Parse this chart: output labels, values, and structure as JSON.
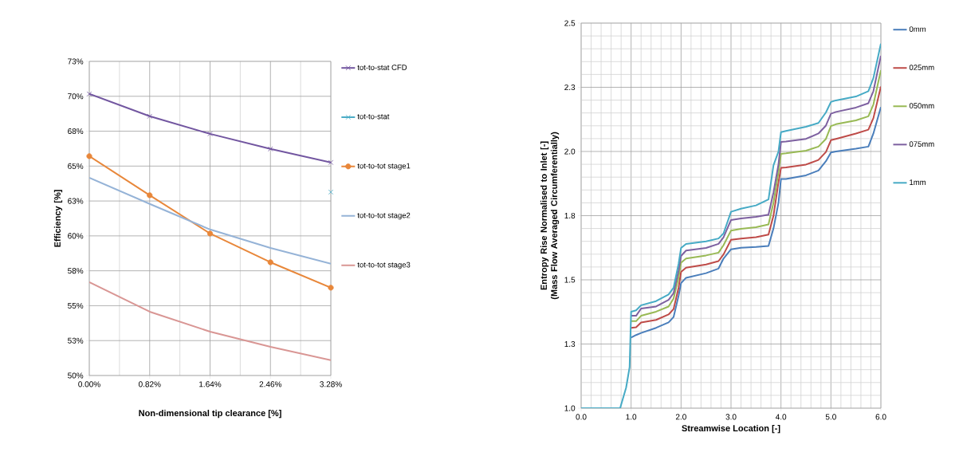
{
  "chart_data": [
    {
      "type": "line",
      "xlabel": "Non-dimensional tip clearance [%]",
      "ylabel": "Efficiency [%]",
      "x": [
        0,
        0.82,
        1.64,
        2.46,
        3.28
      ],
      "xlim": [
        0,
        3.28
      ],
      "xticks": [
        {
          "value": 0,
          "label": "0.00%"
        },
        {
          "value": 0.82,
          "label": "0.82%"
        },
        {
          "value": 1.64,
          "label": "1.64%"
        },
        {
          "value": 2.46,
          "label": "2.46%"
        },
        {
          "value": 3.28,
          "label": "3.28%"
        }
      ],
      "ylim": [
        50,
        72.5
      ],
      "yticks": [
        {
          "value": 50,
          "label": "50%"
        },
        {
          "value": 52.5,
          "label": "53%"
        },
        {
          "value": 55,
          "label": "55%"
        },
        {
          "value": 57.5,
          "label": "58%"
        },
        {
          "value": 60,
          "label": "60%"
        },
        {
          "value": 62.5,
          "label": "63%"
        },
        {
          "value": 65,
          "label": "65%"
        },
        {
          "value": 67.5,
          "label": "68%"
        },
        {
          "value": 70,
          "label": "70%"
        },
        {
          "value": 72.5,
          "label": "73%"
        }
      ],
      "grid": true,
      "legend": "right",
      "series": [
        {
          "name": "tot-to-stat CFD",
          "color": "#7256a0",
          "marker": "cross",
          "values": [
            70.17,
            68.57,
            67.31,
            66.23,
            65.26
          ]
        },
        {
          "name": "tot-to-stat",
          "color": "#4bacc6",
          "marker": "cross",
          "values": [
            null,
            null,
            null,
            null,
            63.14
          ]
        },
        {
          "name": "tot-to-tot stage1",
          "color": "#e8873a",
          "marker": "circle",
          "values": [
            65.71,
            62.91,
            60.17,
            58.11,
            56.29
          ]
        },
        {
          "name": "tot-to-tot stage2",
          "color": "#95b3d7",
          "marker": "none",
          "values": [
            64.17,
            62.29,
            60.46,
            59.14,
            58.0
          ]
        },
        {
          "name": "tot-to-tot stage3",
          "color": "#d99694",
          "marker": "none",
          "values": [
            56.69,
            54.57,
            53.14,
            52.06,
            51.09
          ]
        }
      ]
    },
    {
      "type": "line",
      "xlabel": "Streamwise Location [-]",
      "ylabel": "Entropy Rise Normalised to Inlet [-] (Mass Flow Averaged Circumferentially)",
      "x": [
        0,
        0.78,
        0.9,
        0.97,
        1.0,
        1.1,
        1.2,
        1.5,
        1.75,
        1.85,
        1.95,
        2.0,
        2.1,
        2.5,
        2.75,
        2.85,
        3.0,
        3.2,
        3.5,
        3.75,
        3.85,
        3.95,
        4.0,
        4.1,
        4.5,
        4.75,
        4.9,
        5.0,
        5.1,
        5.5,
        5.75,
        5.85,
        6.0
      ],
      "xlim": [
        0,
        6
      ],
      "xticks": [
        {
          "value": 0,
          "label": "0.0"
        },
        {
          "value": 1,
          "label": "1.0"
        },
        {
          "value": 2,
          "label": "2.0"
        },
        {
          "value": 3,
          "label": "3.0"
        },
        {
          "value": 4,
          "label": "4.0"
        },
        {
          "value": 5,
          "label": "5.0"
        },
        {
          "value": 6,
          "label": "6.0"
        }
      ],
      "ylim": [
        1.0,
        2.5
      ],
      "yticks": [
        {
          "value": 1.0,
          "label": "1.0"
        },
        {
          "value": 1.25,
          "label": "1.3"
        },
        {
          "value": 1.5,
          "label": "1.5"
        },
        {
          "value": 1.75,
          "label": "1.8"
        },
        {
          "value": 2.0,
          "label": "2.0"
        },
        {
          "value": 2.25,
          "label": "2.3"
        },
        {
          "value": 2.5,
          "label": "2.5"
        }
      ],
      "grid": true,
      "legend": "right",
      "marker": "none",
      "series": [
        {
          "name": "0mm",
          "color": "#4a7ebb",
          "values": [
            null,
            null,
            null,
            null,
            1.275,
            1.285,
            1.293,
            1.313,
            1.334,
            1.355,
            1.438,
            1.487,
            1.508,
            1.526,
            1.544,
            1.583,
            1.619,
            1.625,
            1.628,
            1.632,
            1.7,
            1.8,
            1.893,
            1.893,
            1.907,
            1.926,
            1.962,
            1.996,
            2.0,
            2.011,
            2.019,
            2.07,
            2.173
          ]
        },
        {
          "name": "025mm",
          "color": "#be4b48",
          "values": [
            null,
            null,
            null,
            null,
            1.313,
            1.315,
            1.334,
            1.344,
            1.365,
            1.386,
            1.469,
            1.531,
            1.547,
            1.56,
            1.573,
            1.599,
            1.656,
            1.661,
            1.666,
            1.676,
            1.75,
            1.88,
            1.936,
            1.938,
            1.949,
            1.967,
            1.998,
            2.044,
            2.049,
            2.07,
            2.085,
            2.13,
            2.253
          ]
        },
        {
          "name": "050mm",
          "color": "#98b954",
          "values": [
            null,
            null,
            null,
            null,
            1.339,
            1.339,
            1.36,
            1.376,
            1.396,
            1.427,
            1.51,
            1.567,
            1.583,
            1.595,
            1.606,
            1.635,
            1.692,
            1.699,
            1.705,
            1.716,
            1.8,
            1.92,
            1.991,
            1.993,
            2.003,
            2.019,
            2.049,
            2.099,
            2.106,
            2.121,
            2.137,
            2.183,
            2.317
          ]
        },
        {
          "name": "075mm",
          "color": "#7d60a0",
          "values": [
            null,
            null,
            null,
            null,
            1.36,
            1.36,
            1.388,
            1.396,
            1.422,
            1.448,
            1.536,
            1.593,
            1.614,
            1.624,
            1.64,
            1.666,
            1.733,
            1.739,
            1.745,
            1.754,
            1.84,
            1.95,
            2.037,
            2.039,
            2.049,
            2.07,
            2.101,
            2.147,
            2.154,
            2.171,
            2.188,
            2.235,
            2.373
          ]
        },
        {
          "name": "1mm",
          "color": "#46aac5",
          "values": [
            1.0,
            1.0,
            1.08,
            1.16,
            1.376,
            1.381,
            1.401,
            1.417,
            1.443,
            1.469,
            1.562,
            1.624,
            1.64,
            1.65,
            1.661,
            1.681,
            1.765,
            1.777,
            1.79,
            1.813,
            1.946,
            2.0,
            2.075,
            2.08,
            2.096,
            2.111,
            2.152,
            2.193,
            2.199,
            2.214,
            2.235,
            2.286,
            2.42
          ]
        }
      ]
    }
  ]
}
